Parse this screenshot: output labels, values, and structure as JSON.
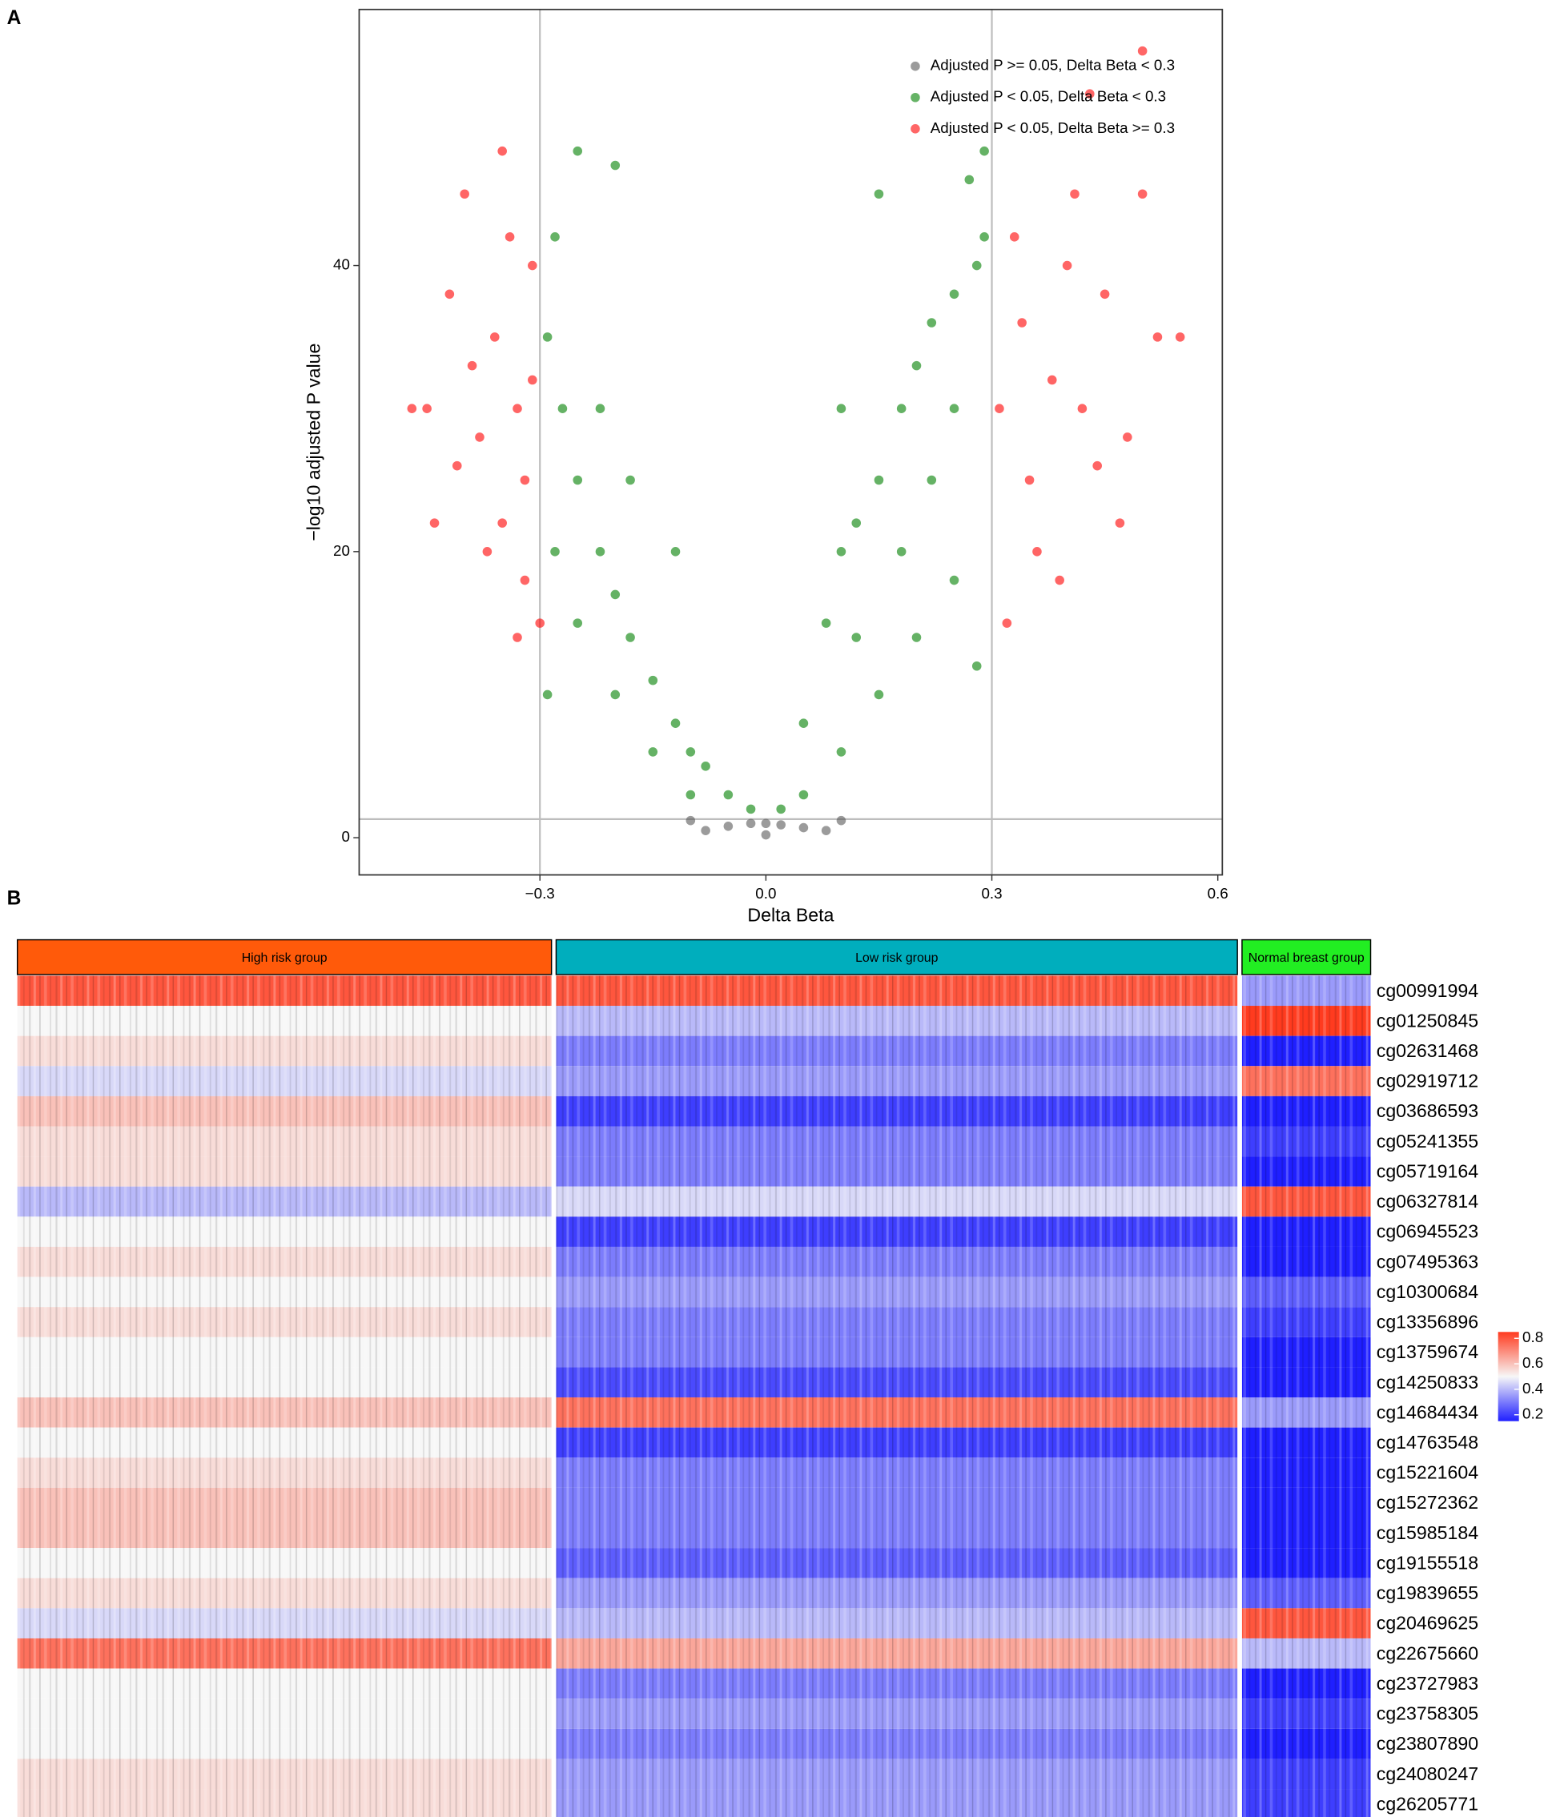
{
  "chart_data": [
    {
      "type": "scatter",
      "panel": "A",
      "x_label": "Delta Beta",
      "y_label": "−log10 adjusted P value",
      "xlim": [
        -0.54,
        0.606
      ],
      "ylim": [
        -2.6,
        57.9
      ],
      "xticks": [
        {
          "value": -0.3,
          "label": "−0.3"
        },
        {
          "value": 0,
          "label": "0.0"
        },
        {
          "value": 0.3,
          "label": "0.3"
        },
        {
          "value": 0.6,
          "label": "0.6"
        }
      ],
      "yticks": [
        0,
        20,
        40
      ],
      "thresholds": {
        "x": [
          -0.3,
          0.3
        ],
        "y": 1.3
      },
      "grid": false,
      "legend": "top-right",
      "opacity": 0.6,
      "series": [
        {
          "name": "Adjusted P >= 0.05, Delta Beta < 0.3",
          "color": "#595959",
          "x": [
            -0.08,
            -0.05,
            -0.02,
            0,
            0.02,
            0.05,
            0.08,
            -0.1,
            0.1,
            0
          ],
          "y": [
            0.5,
            0.8,
            1,
            0.2,
            0.9,
            0.7,
            0.5,
            1.2,
            1.2,
            1
          ]
        },
        {
          "name": "Adjusted P < 0.05, Delta Beta < 0.3",
          "color": "#008000",
          "x": [
            -0.29,
            -0.27,
            -0.25,
            -0.22,
            -0.2,
            -0.18,
            -0.15,
            -0.12,
            -0.1,
            -0.08,
            -0.05,
            -0.02,
            -0.25,
            -0.28,
            -0.2,
            -0.15,
            -0.1,
            -0.25,
            -0.2,
            -0.22,
            -0.18,
            -0.12,
            -0.28,
            -0.29,
            0.02,
            0.05,
            0.08,
            0.1,
            0.12,
            0.15,
            0.18,
            0.2,
            0.22,
            0.25,
            0.28,
            0.29,
            0.05,
            0.1,
            0.15,
            0.2,
            0.25,
            0.28,
            0.12,
            0.18,
            0.22,
            0.25,
            0.29,
            0.27,
            0.15,
            0.1
          ],
          "y": [
            35,
            30,
            25,
            20,
            17,
            14,
            11,
            8,
            6,
            5,
            3,
            2,
            15,
            20,
            10,
            6,
            3,
            48,
            47,
            30,
            25,
            20,
            42,
            10,
            2,
            8,
            15,
            20,
            22,
            25,
            30,
            33,
            36,
            38,
            40,
            42,
            3,
            6,
            10,
            14,
            18,
            12,
            14,
            20,
            25,
            30,
            48,
            46,
            45,
            30
          ]
        },
        {
          "name": "Adjusted P < 0.05, Delta Beta >= 0.3",
          "color": "#ff0000",
          "x": [
            -0.45,
            -0.42,
            -0.4,
            -0.38,
            -0.36,
            -0.35,
            -0.33,
            -0.32,
            -0.31,
            -0.34,
            -0.37,
            -0.39,
            -0.41,
            -0.3,
            -0.32,
            -0.35,
            -0.44,
            -0.47,
            -0.31,
            -0.33,
            0.32,
            0.35,
            0.38,
            0.4,
            0.42,
            0.45,
            0.48,
            0.5,
            0.52,
            0.55,
            0.33,
            0.36,
            0.31,
            0.43,
            0.5,
            0.47,
            0.39,
            0.34,
            0.44,
            0.41
          ],
          "y": [
            30,
            38,
            45,
            28,
            35,
            22,
            30,
            18,
            40,
            42,
            20,
            33,
            26,
            15,
            25,
            48,
            22,
            30,
            32,
            14,
            15,
            25,
            32,
            40,
            30,
            38,
            28,
            45,
            35,
            35,
            42,
            20,
            30,
            52,
            55,
            22,
            18,
            36,
            26,
            45
          ]
        }
      ]
    },
    {
      "type": "heatmap",
      "panel": "B",
      "columns": [
        "High risk group",
        "Low risk group",
        "Normal breast group"
      ],
      "column_colors": [
        "#ff5a0a",
        "#00aebd",
        "#22ee22"
      ],
      "rows": [
        "cg00991994",
        "cg01250845",
        "cg02631468",
        "cg02919712",
        "cg03686593",
        "cg05241355",
        "cg05719164",
        "cg06327814",
        "cg06945523",
        "cg07495363",
        "cg10300684",
        "cg13356896",
        "cg13759674",
        "cg14250833",
        "cg14684434",
        "cg14763548",
        "cg15221604",
        "cg15272362",
        "cg15985184",
        "cg19155518",
        "cg19839655",
        "cg20469625",
        "cg22675660",
        "cg23727983",
        "cg23758305",
        "cg23807890",
        "cg24080247",
        "cg26205771"
      ],
      "values": [
        [
          0.8,
          0.8,
          0.35
        ],
        [
          0.5,
          0.4,
          0.85
        ],
        [
          0.55,
          0.3,
          0.15
        ],
        [
          0.45,
          0.35,
          0.75
        ],
        [
          0.6,
          0.2,
          0.15
        ],
        [
          0.55,
          0.3,
          0.2
        ],
        [
          0.55,
          0.3,
          0.15
        ],
        [
          0.4,
          0.45,
          0.8
        ],
        [
          0.5,
          0.2,
          0.12
        ],
        [
          0.55,
          0.3,
          0.12
        ],
        [
          0.5,
          0.35,
          0.25
        ],
        [
          0.55,
          0.3,
          0.2
        ],
        [
          0.5,
          0.3,
          0.15
        ],
        [
          0.5,
          0.22,
          0.15
        ],
        [
          0.6,
          0.75,
          0.35
        ],
        [
          0.5,
          0.2,
          0.12
        ],
        [
          0.55,
          0.3,
          0.15
        ],
        [
          0.6,
          0.3,
          0.15
        ],
        [
          0.6,
          0.3,
          0.15
        ],
        [
          0.5,
          0.25,
          0.15
        ],
        [
          0.55,
          0.35,
          0.25
        ],
        [
          0.45,
          0.4,
          0.8
        ],
        [
          0.75,
          0.65,
          0.4
        ],
        [
          0.5,
          0.3,
          0.12
        ],
        [
          0.5,
          0.35,
          0.2
        ],
        [
          0.5,
          0.3,
          0.12
        ],
        [
          0.55,
          0.35,
          0.2
        ],
        [
          0.55,
          0.35,
          0.2
        ]
      ],
      "color_scale": {
        "stops": [
          0.15,
          0.5,
          0.85
        ],
        "colors": [
          "#1f1fff",
          "#f7f7f7",
          "#ff3b1f"
        ]
      },
      "colorbar_ticks": [
        0.2,
        0.4,
        0.6,
        0.8
      ]
    }
  ]
}
